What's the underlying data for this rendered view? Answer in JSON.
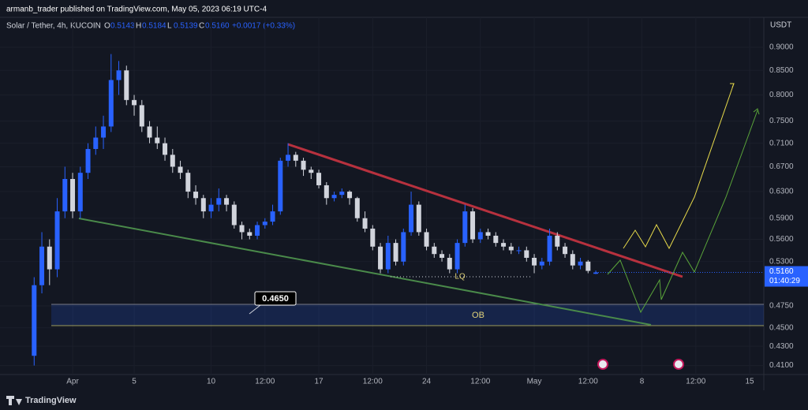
{
  "publisher": "armanb_trader published on TradingView.com, May 05, 2023 06:19 UTC-4",
  "brand": "TradingView",
  "chart_data": {
    "type": "candlestick",
    "symbol": "Solar / Tether, 4h, KUCOIN",
    "ohlc": [
      {
        "key": "O",
        "value": "0.5143"
      },
      {
        "key": "H",
        "value": "0.5184"
      },
      {
        "key": "L",
        "value": "0.5139"
      },
      {
        "key": "C",
        "value": "0.5160"
      }
    ],
    "change": "+0.0017 (+0.33%)",
    "currency": "USDT",
    "log_scale": true,
    "grid": true,
    "up_color": "#2962ff",
    "down_color": "#d1d4dc",
    "x": [
      -2.5,
      -2,
      -1.5,
      -1,
      -0.5,
      0,
      0.5,
      1,
      1.5,
      2,
      2.5,
      3,
      3.5,
      4,
      4.5,
      5,
      5.5,
      6,
      6.5,
      7,
      7.5,
      8,
      8.5,
      9,
      9.5,
      10,
      10.5,
      11,
      11.5,
      12,
      12.5,
      13,
      13.5,
      14,
      14.5,
      15,
      15.5,
      16,
      16.5,
      17,
      17.5,
      18,
      18.5,
      19,
      19.5,
      20,
      20.5,
      21,
      21.5,
      22,
      22.5,
      23,
      23.5,
      24,
      24.5,
      25,
      25.5,
      26,
      26.5,
      27,
      27.5,
      28,
      28.5,
      29,
      29.5,
      30,
      30.5,
      31,
      31.5,
      32,
      32.5,
      33,
      33.5,
      34
    ],
    "open": [
      0.42,
      0.5,
      0.55,
      0.52,
      0.6,
      0.65,
      0.6,
      0.66,
      0.7,
      0.72,
      0.74,
      0.83,
      0.85,
      0.79,
      0.78,
      0.74,
      0.72,
      0.71,
      0.69,
      0.67,
      0.66,
      0.63,
      0.62,
      0.6,
      0.61,
      0.62,
      0.61,
      0.58,
      0.57,
      0.565,
      0.58,
      0.585,
      0.6,
      0.68,
      0.69,
      0.68,
      0.665,
      0.66,
      0.64,
      0.62,
      0.625,
      0.63,
      0.62,
      0.59,
      0.575,
      0.55,
      0.52,
      0.555,
      0.53,
      0.57,
      0.61,
      0.57,
      0.55,
      0.54,
      0.535,
      0.52,
      0.555,
      0.6,
      0.56,
      0.57,
      0.565,
      0.555,
      0.55,
      0.545,
      0.545,
      0.535,
      0.525,
      0.53,
      0.565,
      0.55,
      0.54,
      0.525,
      0.53,
      0.5143
    ],
    "high": [
      0.51,
      0.57,
      0.56,
      0.62,
      0.67,
      0.66,
      0.67,
      0.71,
      0.74,
      0.76,
      0.885,
      0.87,
      0.86,
      0.8,
      0.79,
      0.75,
      0.74,
      0.72,
      0.7,
      0.68,
      0.665,
      0.64,
      0.625,
      0.62,
      0.635,
      0.625,
      0.615,
      0.585,
      0.575,
      0.585,
      0.59,
      0.61,
      0.685,
      0.71,
      0.695,
      0.685,
      0.67,
      0.665,
      0.645,
      0.63,
      0.635,
      0.632,
      0.622,
      0.6,
      0.58,
      0.555,
      0.565,
      0.56,
      0.575,
      0.63,
      0.615,
      0.575,
      0.555,
      0.545,
      0.54,
      0.56,
      0.61,
      0.605,
      0.575,
      0.575,
      0.57,
      0.56,
      0.555,
      0.55,
      0.55,
      0.54,
      0.535,
      0.575,
      0.57,
      0.555,
      0.545,
      0.535,
      0.532,
      0.5184
    ],
    "low": [
      0.41,
      0.49,
      0.5,
      0.51,
      0.59,
      0.59,
      0.59,
      0.65,
      0.69,
      0.7,
      0.73,
      0.8,
      0.78,
      0.76,
      0.73,
      0.71,
      0.7,
      0.68,
      0.66,
      0.65,
      0.62,
      0.61,
      0.59,
      0.59,
      0.6,
      0.6,
      0.575,
      0.56,
      0.56,
      0.56,
      0.575,
      0.58,
      0.595,
      0.67,
      0.67,
      0.655,
      0.65,
      0.635,
      0.61,
      0.615,
      0.62,
      0.61,
      0.585,
      0.57,
      0.545,
      0.515,
      0.515,
      0.525,
      0.525,
      0.565,
      0.565,
      0.545,
      0.535,
      0.53,
      0.515,
      0.515,
      0.55,
      0.555,
      0.555,
      0.56,
      0.55,
      0.545,
      0.54,
      0.54,
      0.53,
      0.515,
      0.52,
      0.525,
      0.545,
      0.535,
      0.52,
      0.52,
      0.515,
      0.5139
    ],
    "close": [
      0.5,
      0.55,
      0.52,
      0.6,
      0.65,
      0.6,
      0.66,
      0.7,
      0.72,
      0.74,
      0.83,
      0.85,
      0.79,
      0.78,
      0.74,
      0.72,
      0.71,
      0.69,
      0.67,
      0.66,
      0.63,
      0.62,
      0.6,
      0.61,
      0.62,
      0.61,
      0.58,
      0.57,
      0.565,
      0.58,
      0.585,
      0.6,
      0.68,
      0.69,
      0.68,
      0.665,
      0.66,
      0.64,
      0.62,
      0.625,
      0.63,
      0.62,
      0.59,
      0.575,
      0.55,
      0.52,
      0.555,
      0.53,
      0.57,
      0.61,
      0.57,
      0.55,
      0.54,
      0.535,
      0.52,
      0.555,
      0.6,
      0.56,
      0.57,
      0.565,
      0.555,
      0.55,
      0.545,
      0.545,
      0.535,
      0.525,
      0.53,
      0.565,
      0.55,
      0.54,
      0.525,
      0.53,
      0.518,
      0.516
    ],
    "xlim": [
      -4.72,
      44.92
    ],
    "xticks": [
      {
        "value": 0,
        "label": "Apr"
      },
      {
        "value": 4,
        "label": "5"
      },
      {
        "value": 9,
        "label": "10"
      },
      {
        "value": 12.5,
        "label": "12:00"
      },
      {
        "value": 16,
        "label": "17"
      },
      {
        "value": 19.5,
        "label": "12:00"
      },
      {
        "value": 23,
        "label": "24"
      },
      {
        "value": 26.5,
        "label": "12:00"
      },
      {
        "value": 30,
        "label": "May"
      },
      {
        "value": 33.5,
        "label": "12:00"
      },
      {
        "value": 37,
        "label": "8"
      },
      {
        "value": 40.5,
        "label": "12:00"
      },
      {
        "value": 44,
        "label": "15"
      }
    ],
    "ylim": [
      0.401,
      0.969
    ],
    "yticks": [
      {
        "value": 0.9,
        "label": "0.9000"
      },
      {
        "value": 0.85,
        "label": "0.8500"
      },
      {
        "value": 0.8,
        "label": "0.8000"
      },
      {
        "value": 0.75,
        "label": "0.7500"
      },
      {
        "value": 0.71,
        "label": "0.7100"
      },
      {
        "value": 0.67,
        "label": "0.6700"
      },
      {
        "value": 0.63,
        "label": "0.6300"
      },
      {
        "value": 0.59,
        "label": "0.5900"
      },
      {
        "value": 0.56,
        "label": "0.5600"
      },
      {
        "value": 0.53,
        "label": "0.5300"
      },
      {
        "value": 0.475,
        "label": "0.4750"
      },
      {
        "value": 0.45,
        "label": "0.4500"
      },
      {
        "value": 0.43,
        "label": "0.4300"
      },
      {
        "value": 0.41,
        "label": "0.4100"
      }
    ],
    "last_price": {
      "value": 0.516,
      "label": "0.5160"
    },
    "countdown": "01:40:29",
    "annotations": {
      "level": "0.4650",
      "ob": "OB",
      "lq": "LQ"
    }
  }
}
